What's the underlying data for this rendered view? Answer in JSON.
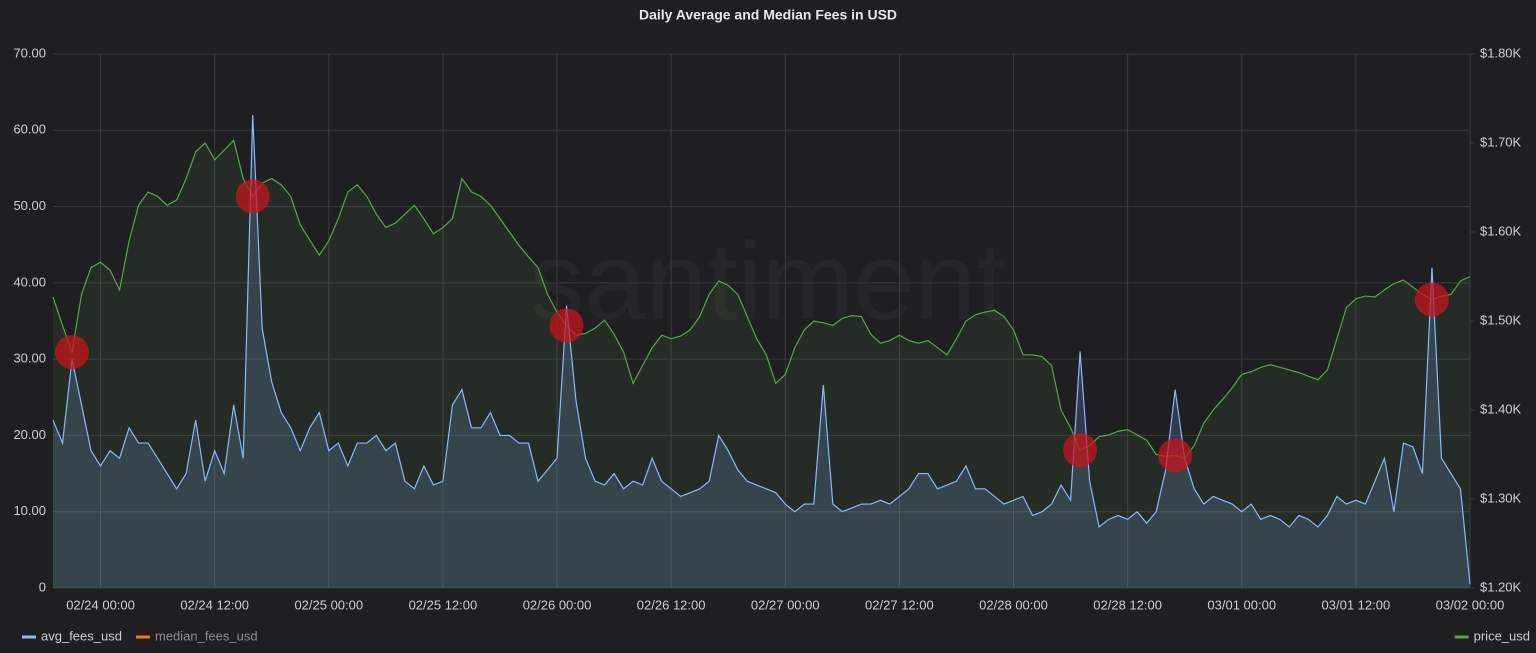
{
  "chart_data": {
    "type": "line",
    "title": "Daily Average and Median Fees in USD",
    "watermark": "santiment",
    "x": [
      "02/23 19:00",
      "02/23 20:00",
      "02/23 21:00",
      "02/23 22:00",
      "02/23 23:00",
      "02/24 00:00",
      "02/24 01:00",
      "02/24 02:00",
      "02/24 03:00",
      "02/24 04:00",
      "02/24 05:00",
      "02/24 06:00",
      "02/24 07:00",
      "02/24 08:00",
      "02/24 09:00",
      "02/24 10:00",
      "02/24 11:00",
      "02/24 12:00",
      "02/24 13:00",
      "02/24 14:00",
      "02/24 15:00",
      "02/24 16:00",
      "02/24 17:00",
      "02/24 18:00",
      "02/24 19:00",
      "02/24 20:00",
      "02/24 21:00",
      "02/24 22:00",
      "02/24 23:00",
      "02/25 00:00",
      "02/25 01:00",
      "02/25 02:00",
      "02/25 03:00",
      "02/25 04:00",
      "02/25 05:00",
      "02/25 06:00",
      "02/25 07:00",
      "02/25 08:00",
      "02/25 09:00",
      "02/25 10:00",
      "02/25 11:00",
      "02/25 12:00",
      "02/25 13:00",
      "02/25 14:00",
      "02/25 15:00",
      "02/25 16:00",
      "02/25 17:00",
      "02/25 18:00",
      "02/25 19:00",
      "02/25 20:00",
      "02/25 21:00",
      "02/25 22:00",
      "02/25 23:00",
      "02/26 00:00",
      "02/26 01:00",
      "02/26 02:00",
      "02/26 03:00",
      "02/26 04:00",
      "02/26 05:00",
      "02/26 06:00",
      "02/26 07:00",
      "02/26 08:00",
      "02/26 09:00",
      "02/26 10:00",
      "02/26 11:00",
      "02/26 12:00",
      "02/26 13:00",
      "02/26 14:00",
      "02/26 15:00",
      "02/26 16:00",
      "02/26 17:00",
      "02/26 18:00",
      "02/26 19:00",
      "02/26 20:00",
      "02/26 21:00",
      "02/26 22:00",
      "02/26 23:00",
      "02/27 00:00",
      "02/27 01:00",
      "02/27 02:00",
      "02/27 03:00",
      "02/27 04:00",
      "02/27 05:00",
      "02/27 06:00",
      "02/27 07:00",
      "02/27 08:00",
      "02/27 09:00",
      "02/27 10:00",
      "02/27 11:00",
      "02/27 12:00",
      "02/27 13:00",
      "02/27 14:00",
      "02/27 15:00",
      "02/27 16:00",
      "02/27 17:00",
      "02/27 18:00",
      "02/27 19:00",
      "02/27 20:00",
      "02/27 21:00",
      "02/27 22:00",
      "02/27 23:00",
      "02/28 00:00",
      "02/28 01:00",
      "02/28 02:00",
      "02/28 03:00",
      "02/28 04:00",
      "02/28 05:00",
      "02/28 06:00",
      "02/28 07:00",
      "02/28 08:00",
      "02/28 09:00",
      "02/28 10:00",
      "02/28 11:00",
      "02/28 12:00",
      "02/28 13:00",
      "02/28 14:00",
      "02/28 15:00",
      "02/28 16:00",
      "02/28 17:00",
      "02/28 18:00",
      "02/28 19:00",
      "02/28 20:00",
      "02/28 21:00",
      "02/28 22:00",
      "02/28 23:00",
      "03/01 00:00",
      "03/01 01:00",
      "03/01 02:00",
      "03/01 03:00",
      "03/01 04:00",
      "03/01 05:00",
      "03/01 06:00",
      "03/01 07:00",
      "03/01 08:00",
      "03/01 09:00",
      "03/01 10:00",
      "03/01 11:00",
      "03/01 12:00",
      "03/01 13:00",
      "03/01 14:00",
      "03/01 15:00",
      "03/01 16:00",
      "03/01 17:00",
      "03/01 18:00",
      "03/01 19:00",
      "03/01 20:00",
      "03/01 21:00",
      "03/01 22:00",
      "03/01 23:00",
      "03/02 00:00"
    ],
    "series": [
      {
        "name": "avg_fees_usd",
        "color": "#8ab8ff",
        "axis": "y",
        "legend": "left",
        "values": [
          22,
          19,
          30,
          24,
          18,
          16,
          18,
          17,
          21,
          19,
          19,
          17,
          15,
          13,
          15,
          22,
          14,
          18,
          15,
          24,
          17,
          62,
          34,
          27,
          23,
          21,
          18,
          21,
          23,
          18,
          19,
          16,
          19,
          19,
          20,
          18,
          19,
          14,
          13,
          16,
          13.5,
          14,
          24,
          26,
          21,
          21,
          23,
          20,
          20,
          19,
          19,
          14,
          15.5,
          17,
          37,
          24.5,
          17,
          14,
          13.5,
          15,
          13,
          14,
          13.5,
          17,
          14,
          13,
          12,
          12.5,
          13,
          14,
          20,
          18,
          15.5,
          14,
          13.5,
          13,
          12.5,
          11,
          10,
          11,
          11,
          26.6,
          11,
          10,
          10.5,
          11,
          11,
          11.5,
          11,
          12,
          13,
          15,
          15,
          13,
          13.5,
          14,
          16,
          13,
          13,
          12,
          11,
          11.5,
          12,
          9.5,
          10,
          11,
          13.5,
          11.5,
          31,
          14,
          8,
          9,
          9.5,
          9,
          10,
          8.5,
          10,
          15.5,
          26,
          17,
          13,
          11,
          12,
          11.5,
          11,
          10,
          11,
          9,
          9.5,
          9,
          8,
          9.5,
          9,
          8,
          9.5,
          12,
          11,
          11.5,
          11,
          14,
          17,
          10,
          19,
          18.5,
          15,
          42,
          17,
          15,
          13,
          0.5
        ]
      },
      {
        "name": "price_usd",
        "color": "#56a64b",
        "axis": "y2",
        "legend": "right",
        "values": [
          1527,
          1495,
          1465,
          1530,
          1560,
          1566,
          1557,
          1535,
          1590,
          1630,
          1645,
          1640,
          1630,
          1636,
          1660,
          1690,
          1700,
          1681,
          1692,
          1703,
          1660,
          1640,
          1655,
          1660,
          1653,
          1640,
          1608,
          1591,
          1574,
          1590,
          1615,
          1645,
          1653,
          1640,
          1620,
          1605,
          1610,
          1620,
          1630,
          1615,
          1598,
          1605,
          1615,
          1660,
          1645,
          1640,
          1630,
          1615,
          1600,
          1585,
          1572,
          1560,
          1530,
          1510,
          1495,
          1484,
          1486,
          1492,
          1501,
          1485,
          1465,
          1430,
          1450,
          1470,
          1484,
          1480,
          1483,
          1490,
          1505,
          1530,
          1545,
          1540,
          1530,
          1505,
          1480,
          1462,
          1430,
          1440,
          1470,
          1490,
          1500,
          1498,
          1495,
          1503,
          1506,
          1505,
          1485,
          1475,
          1478,
          1484,
          1478,
          1475,
          1478,
          1470,
          1462,
          1480,
          1500,
          1507,
          1510,
          1512,
          1505,
          1490,
          1462,
          1462,
          1460,
          1450,
          1400,
          1380,
          1355,
          1360,
          1370,
          1372,
          1376,
          1378,
          1372,
          1366,
          1350,
          1348,
          1349,
          1346,
          1360,
          1385,
          1400,
          1412,
          1425,
          1440,
          1443,
          1448,
          1451,
          1448,
          1445,
          1442,
          1438,
          1434,
          1445,
          1480,
          1515,
          1525,
          1528,
          1527,
          1535,
          1542,
          1546,
          1538,
          1530,
          1524,
          1528,
          1530,
          1545,
          1550
        ]
      }
    ],
    "hidden_series": [
      {
        "name": "median_fees_usd",
        "color": "#ff780a",
        "legend": "left"
      }
    ],
    "highlights": [
      "02/23 21:00",
      "02/24 16:00",
      "02/26 01:00",
      "02/28 07:00",
      "02/28 17:00",
      "03/01 20:00"
    ],
    "highlight_color": "#c4161c",
    "xlim": [
      "02/23 19:00",
      "03/02 00:00"
    ],
    "xticks": [
      "02/24 00:00",
      "02/24 12:00",
      "02/25 00:00",
      "02/25 12:00",
      "02/26 00:00",
      "02/26 12:00",
      "02/27 00:00",
      "02/27 12:00",
      "02/28 00:00",
      "02/28 12:00",
      "03/01 00:00",
      "03/01 12:00",
      "03/02 00:00"
    ],
    "ylim": [
      0,
      70
    ],
    "yticks": [
      0,
      {
        "value": 10,
        "label": "10.00"
      },
      {
        "value": 20,
        "label": "20.00"
      },
      {
        "value": 30,
        "label": "30.00"
      },
      {
        "value": 40,
        "label": "40.00"
      },
      {
        "value": 50,
        "label": "50.00"
      },
      {
        "value": 60,
        "label": "60.00"
      },
      {
        "value": 70,
        "label": "70.00"
      }
    ],
    "y2lim": [
      1200,
      1800
    ],
    "y2ticks": [
      {
        "value": 1200,
        "label": "$1.20K"
      },
      {
        "value": 1300,
        "label": "$1.30K"
      },
      {
        "value": 1400,
        "label": "$1.40K"
      },
      {
        "value": 1500,
        "label": "$1.50K"
      },
      {
        "value": 1600,
        "label": "$1.60K"
      },
      {
        "value": 1700,
        "label": "$1.70K"
      },
      {
        "value": 1800,
        "label": "$1.80K"
      }
    ],
    "grid": true
  }
}
